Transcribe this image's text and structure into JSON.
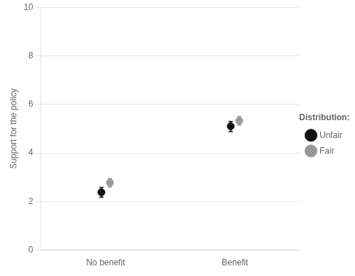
{
  "chart_data": {
    "type": "point",
    "categories": [
      "No benefit",
      "Benefit"
    ],
    "series": [
      {
        "name": "Unfair",
        "color": "#111111",
        "marker": "circle",
        "values": [
          2.38,
          5.1
        ],
        "ci_lower": [
          2.18,
          4.88
        ],
        "ci_upper": [
          2.58,
          5.3
        ]
      },
      {
        "name": "Fair",
        "color": "#999999",
        "marker": "circle",
        "values": [
          2.78,
          5.33
        ],
        "ci_lower": [
          2.6,
          5.15
        ],
        "ci_upper": [
          2.95,
          5.5
        ]
      }
    ],
    "ylabel": "Support for the policy",
    "ylim": [
      0,
      10
    ],
    "yticks": [
      0,
      2,
      4,
      6,
      8,
      10
    ],
    "grid": true,
    "legend": "right",
    "legend_title": "Distribution:"
  }
}
